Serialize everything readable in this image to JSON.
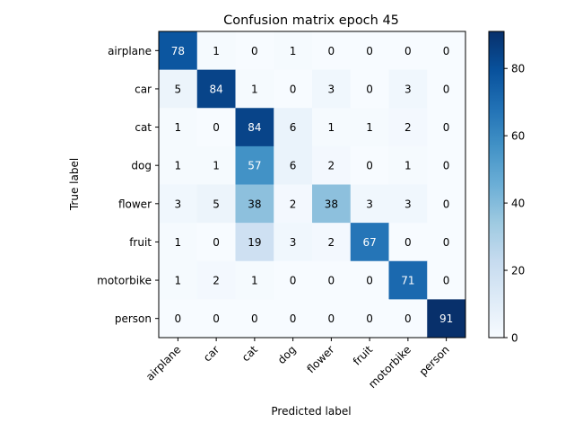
{
  "chart_data": {
    "type": "heatmap",
    "title": "Confusion matrix epoch 45",
    "xlabel": "Predicted label",
    "ylabel": "True label",
    "labels": [
      "airplane",
      "car",
      "cat",
      "dog",
      "flower",
      "fruit",
      "motorbike",
      "person"
    ],
    "matrix": [
      [
        78,
        1,
        0,
        1,
        0,
        0,
        0,
        0
      ],
      [
        5,
        84,
        1,
        0,
        3,
        0,
        3,
        0
      ],
      [
        1,
        0,
        84,
        6,
        1,
        1,
        2,
        0
      ],
      [
        1,
        1,
        57,
        6,
        2,
        0,
        1,
        0
      ],
      [
        3,
        5,
        38,
        2,
        38,
        3,
        3,
        0
      ],
      [
        1,
        0,
        19,
        3,
        2,
        67,
        0,
        0
      ],
      [
        1,
        2,
        1,
        0,
        0,
        0,
        71,
        0
      ],
      [
        0,
        0,
        0,
        0,
        0,
        0,
        0,
        91
      ]
    ],
    "colormap": "Blues",
    "vmin": 0,
    "vmax": 91,
    "colorbar_ticks": [
      0,
      20,
      40,
      60,
      80
    ]
  }
}
